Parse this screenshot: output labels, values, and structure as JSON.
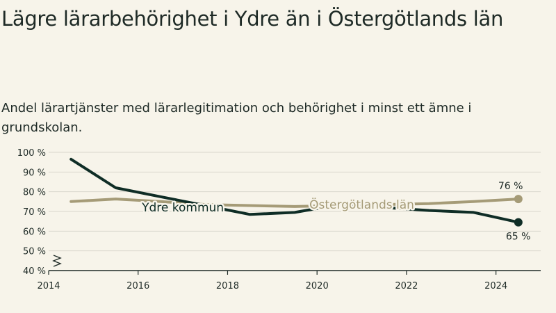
{
  "header": {
    "title": "Lägre lärarbehörighet i Ydre än i Östergötlands län",
    "subtitle": "Andel lärartjänster med lärarlegitimation och behörighet i minst ett ämne i grundskolan."
  },
  "colors": {
    "background": "#f7f4ea",
    "ydre": "#0f2d26",
    "lan": "#a59b77",
    "grid": "#d9d6cc",
    "axis": "#1e2a26"
  },
  "chart_data": {
    "type": "line",
    "title": "Lägre lärarbehörighet i Ydre än i Östergötlands län",
    "subtitle": "Andel lärartjänster med lärarlegitimation och behörighet i minst ett ämne i grundskolan.",
    "xlabel": "",
    "ylabel": "",
    "xlim": [
      2014,
      2025
    ],
    "ylim": [
      40,
      100
    ],
    "axis_break": true,
    "grid": true,
    "x_ticks": [
      2014,
      2016,
      2018,
      2020,
      2022,
      2024
    ],
    "x_tick_labels": [
      "2014",
      "2016",
      "2018",
      "2020",
      "2022",
      "2024"
    ],
    "y_ticks": [
      40,
      50,
      60,
      70,
      80,
      90,
      100
    ],
    "y_tick_labels": [
      "40 %",
      "50 %",
      "60 %",
      "70 %",
      "80 %",
      "90 %",
      "100 %"
    ],
    "x": [
      2014.5,
      2015.5,
      2016.5,
      2017.5,
      2018.5,
      2019.5,
      2020.5,
      2021.5,
      2022.5,
      2023.5,
      2024.5
    ],
    "series": [
      {
        "name": "Ydre kommun",
        "color": "#0f2d26",
        "values": [
          96.5,
          82,
          77.5,
          73,
          68.5,
          69.5,
          73.5,
          72,
          70.5,
          69.5,
          64.5
        ],
        "end_label": "65 %"
      },
      {
        "name": "Östergötlands län",
        "color": "#a59b77",
        "values": [
          75,
          76.3,
          75,
          73.5,
          73,
          72.5,
          73,
          73.5,
          74,
          75,
          76.3
        ],
        "end_label": "76 %"
      }
    ]
  }
}
